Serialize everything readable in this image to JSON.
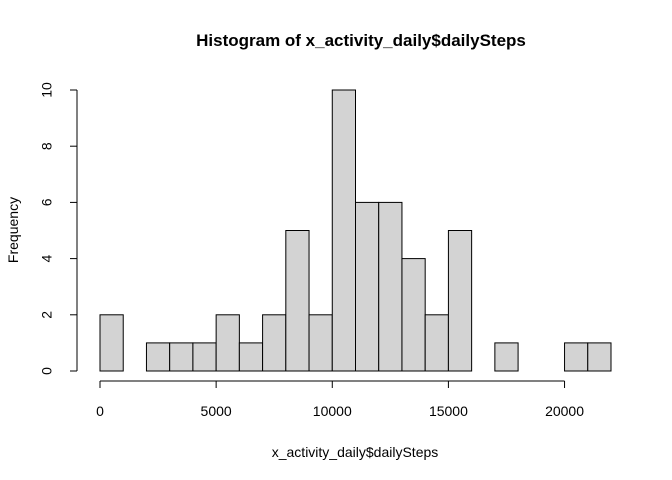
{
  "chart_data": {
    "type": "bar",
    "title": "Histogram of x_activity_daily$dailySteps",
    "xlabel": "x_activity_daily$dailySteps",
    "ylabel": "Frequency",
    "bin_width": 1000,
    "bins": [
      {
        "start": 0,
        "end": 1000,
        "count": 2
      },
      {
        "start": 1000,
        "end": 2000,
        "count": 0
      },
      {
        "start": 2000,
        "end": 3000,
        "count": 1
      },
      {
        "start": 3000,
        "end": 4000,
        "count": 1
      },
      {
        "start": 4000,
        "end": 5000,
        "count": 1
      },
      {
        "start": 5000,
        "end": 6000,
        "count": 2
      },
      {
        "start": 6000,
        "end": 7000,
        "count": 1
      },
      {
        "start": 7000,
        "end": 8000,
        "count": 2
      },
      {
        "start": 8000,
        "end": 9000,
        "count": 5
      },
      {
        "start": 9000,
        "end": 10000,
        "count": 2
      },
      {
        "start": 10000,
        "end": 11000,
        "count": 10
      },
      {
        "start": 11000,
        "end": 12000,
        "count": 6
      },
      {
        "start": 12000,
        "end": 13000,
        "count": 6
      },
      {
        "start": 13000,
        "end": 14000,
        "count": 4
      },
      {
        "start": 14000,
        "end": 15000,
        "count": 2
      },
      {
        "start": 15000,
        "end": 16000,
        "count": 5
      },
      {
        "start": 16000,
        "end": 17000,
        "count": 0
      },
      {
        "start": 17000,
        "end": 18000,
        "count": 1
      },
      {
        "start": 18000,
        "end": 19000,
        "count": 0
      },
      {
        "start": 19000,
        "end": 20000,
        "count": 0
      },
      {
        "start": 20000,
        "end": 21000,
        "count": 1
      },
      {
        "start": 21000,
        "end": 22000,
        "count": 1
      }
    ],
    "xlim": [
      0,
      22000
    ],
    "ylim": [
      0,
      10
    ],
    "x_ticks": [
      0,
      5000,
      10000,
      15000,
      20000
    ],
    "y_ticks": [
      0,
      2,
      4,
      6,
      8,
      10
    ],
    "bar_fill": "#d3d3d3",
    "bar_stroke": "#000000",
    "grid": false
  }
}
